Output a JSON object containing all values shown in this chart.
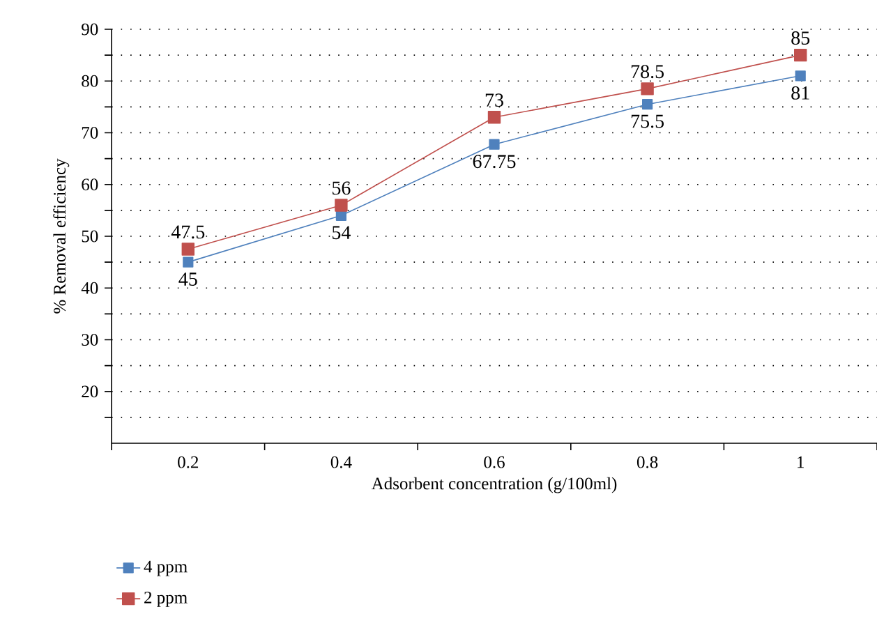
{
  "chart_data": {
    "type": "line",
    "xlabel": "Adsorbent concentration (g/100ml)",
    "ylabel": "% Removal efficiency",
    "categories": [
      "0.2",
      "0.4",
      "0.6",
      "0.8",
      "1"
    ],
    "series": [
      {
        "name": "4 ppm",
        "color": "#4f81bd",
        "values": [
          45,
          54,
          67.75,
          75.5,
          81
        ]
      },
      {
        "name": "2 ppm",
        "color": "#c0504d",
        "values": [
          47.5,
          56,
          73,
          78.5,
          85
        ]
      }
    ],
    "data_labels": true,
    "ylim": [
      10,
      90
    ],
    "yticks": [
      {
        "value": 15,
        "label": null
      },
      20,
      {
        "value": 25,
        "label": null
      },
      30,
      {
        "value": 35,
        "label": null
      },
      40,
      {
        "value": 45,
        "label": null
      },
      50,
      {
        "value": 55,
        "label": null
      },
      60,
      {
        "value": 65,
        "label": null
      },
      70,
      {
        "value": 75,
        "label": null
      },
      80,
      {
        "value": 85,
        "label": null
      },
      90
    ],
    "grid": "y",
    "legend": "bottom left",
    "marker": "square",
    "line_style": "solid"
  }
}
